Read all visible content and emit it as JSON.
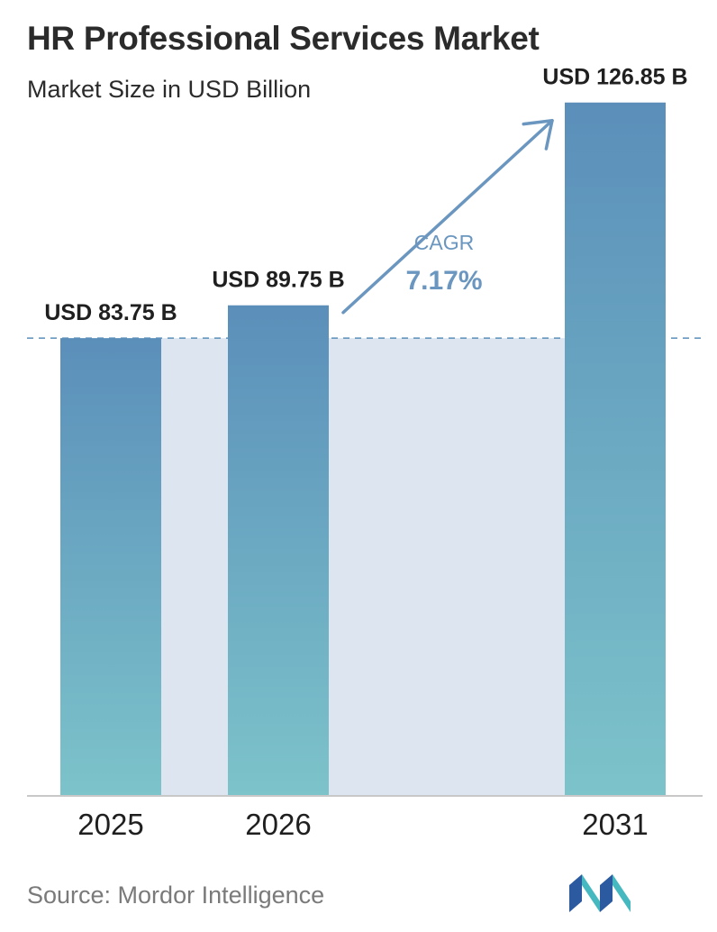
{
  "header": {
    "title": "HR Professional Services Market",
    "subtitle": "Market Size in USD Billion"
  },
  "chart_data": {
    "type": "bar",
    "categories": [
      "2025",
      "2026",
      "2031"
    ],
    "values": [
      83.75,
      89.75,
      126.85
    ],
    "data_labels": [
      "USD 83.75 B",
      "USD 89.75 B",
      "USD 126.85 B"
    ],
    "ylim": [
      0,
      140
    ],
    "reference_line_value": 83.75,
    "annotation": {
      "label": "CAGR",
      "value": "7.17%"
    },
    "grid": false,
    "colors": {
      "bar_top": "#5b8fba",
      "bar_bottom": "#7cc3ca",
      "band": "#dde6f0",
      "dashed_line": "#5b8fba",
      "cagr_text": "#6a96bf",
      "axis": "#c8c8c8"
    }
  },
  "footer": {
    "source": "Source:  Mordor Intelligence",
    "logo_icon": "mordor-intelligence-logo-icon",
    "logo_colors": [
      "#2c5aa0",
      "#45b8c0"
    ]
  }
}
